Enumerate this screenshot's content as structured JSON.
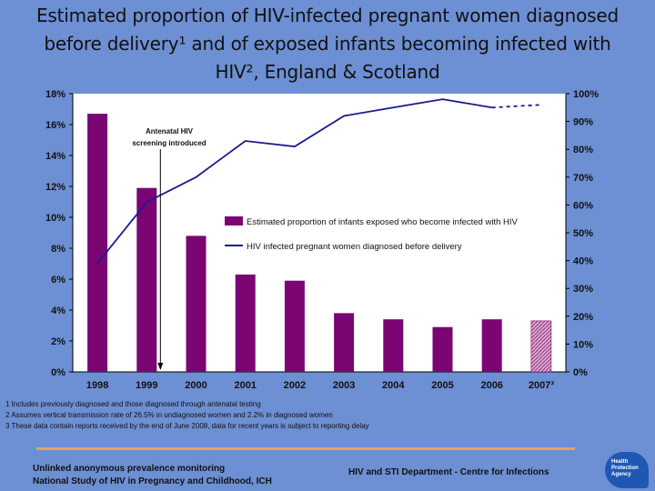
{
  "title": {
    "line1": "Estimated proportion of HIV-infected pregnant women diagnosed",
    "line2": "before delivery¹ and of exposed infants becoming infected with",
    "line3": "HIV², England & Scotland"
  },
  "colors": {
    "background": "#6d8fd3",
    "plot_area": "#ffffff",
    "bar": "#7a0573",
    "bar_estimate": "#d9a8c9",
    "line": "#1a1a8c",
    "rule": "#e9a35e"
  },
  "chart_data": {
    "type": "bar",
    "categories": [
      "1998",
      "1999",
      "2000",
      "2001",
      "2002",
      "2003",
      "2004",
      "2005",
      "2006",
      "2007³"
    ],
    "series": [
      {
        "name": "Estimated proportion of infants exposed who become infected with HIV",
        "type": "bar",
        "axis": "left",
        "values": [
          16.7,
          11.9,
          8.8,
          6.3,
          5.9,
          3.8,
          3.4,
          2.9,
          3.4,
          3.3
        ],
        "estimated": [
          false,
          false,
          false,
          false,
          false,
          false,
          false,
          false,
          false,
          true
        ]
      },
      {
        "name": "HIV infected pregnant women diagnosed before delivery",
        "type": "line",
        "axis": "right",
        "values": [
          39,
          61,
          70,
          83,
          81,
          92,
          95,
          98,
          95,
          96
        ],
        "dashed_last_segment": true
      }
    ],
    "left_axis": {
      "ylim": [
        0,
        18
      ],
      "ticks": [
        0,
        2,
        4,
        6,
        8,
        10,
        12,
        14,
        16,
        18
      ],
      "tick_labels": [
        "0%",
        "2%",
        "4%",
        "6%",
        "8%",
        "10%",
        "12%",
        "14%",
        "16%",
        "18%"
      ]
    },
    "right_axis": {
      "ylim": [
        0,
        100
      ],
      "ticks": [
        0,
        10,
        20,
        30,
        40,
        50,
        60,
        70,
        80,
        90,
        100
      ],
      "tick_labels": [
        "0%",
        "10%",
        "20%",
        "30%",
        "40%",
        "50%",
        "60%",
        "70%",
        "80%",
        "90%",
        "100%"
      ]
    },
    "annotation": {
      "text_line1": "Antenatal HIV",
      "text_line2": "screening introduced",
      "at_category": "1999"
    },
    "legend_position": "center-right",
    "grid": false
  },
  "footnotes": [
    "1 Includes previously diagnosed and those diagnosed through antenatal testing",
    "2 Assumes vertical transmission rate of 26.5% in undiagnosed women and 2.2% in diagnosed women",
    "3 These data contain reports received by the end of June 2008, data for recent years is subject to reporting delay"
  ],
  "footer": {
    "left_line1": "Unlinked anonymous prevalence monitoring",
    "left_line2": "National Study of HIV in Pregnancy and Childhood, ICH",
    "middle": "HIV and STI Department - Centre for Infections",
    "logo_line1": "Health",
    "logo_line2": "Protection",
    "logo_line3": "Agency"
  }
}
